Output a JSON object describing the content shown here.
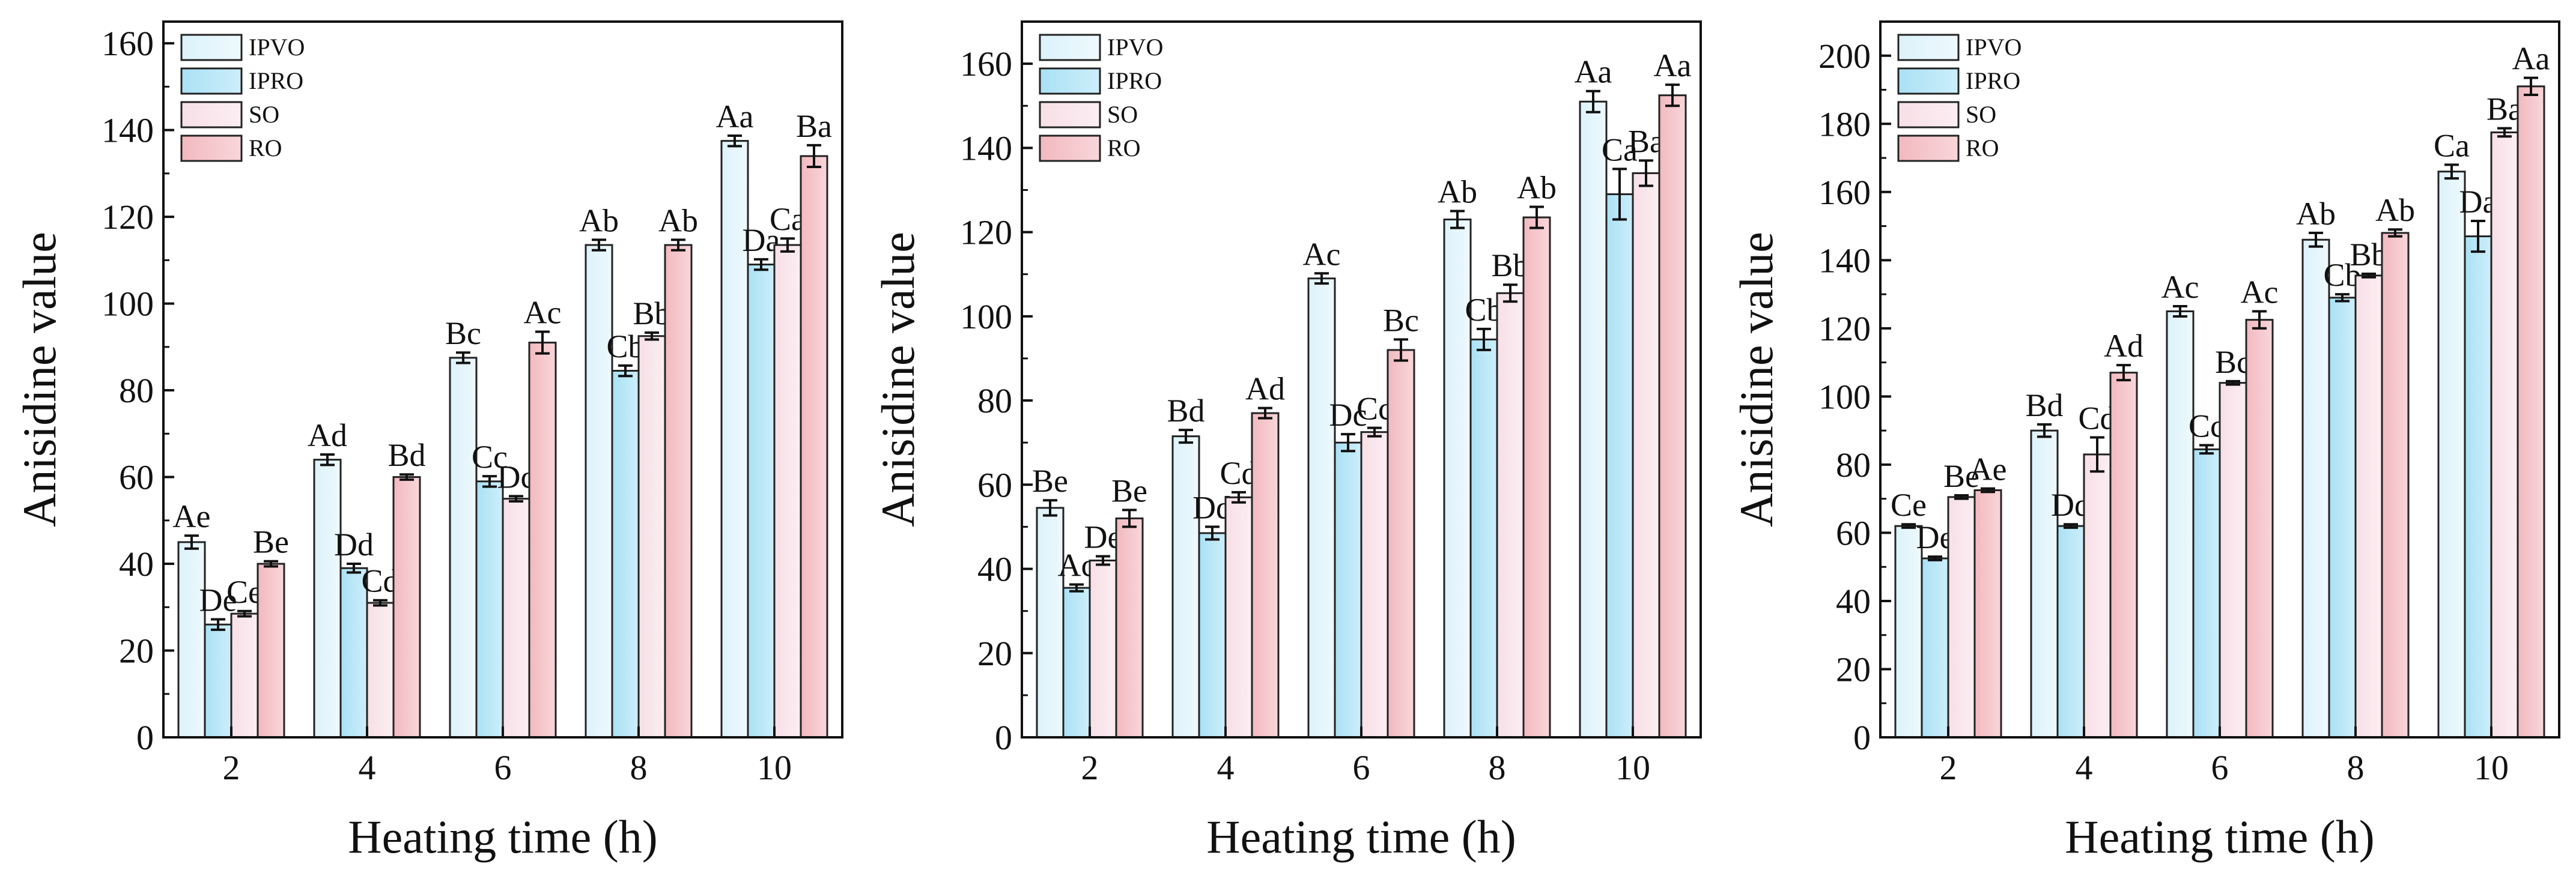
{
  "legend": {
    "entries": [
      {
        "name": "IPVO",
        "color": "#dcf2fb",
        "gradient_to": "#eef9fd"
      },
      {
        "name": "IPRO",
        "color": "#a9e1f5",
        "gradient_to": "#cdeefa"
      },
      {
        "name": "SO",
        "color": "#f7dfe6",
        "gradient_to": "#fbeef2"
      },
      {
        "name": "RO",
        "color": "#f2b9bf",
        "gradient_to": "#f8d6da"
      }
    ]
  },
  "chart_data": [
    {
      "type": "bar",
      "title": "",
      "xlabel": "Heating time (h)",
      "ylabel": "Anisidine value",
      "categories": [
        "2",
        "4",
        "6",
        "8",
        "10"
      ],
      "ylim": [
        0,
        165
      ],
      "yticks": [
        "0",
        "20",
        "40",
        "60",
        "80",
        "100",
        "120",
        "140",
        "160"
      ],
      "legend_position": "top-left",
      "series": [
        {
          "name": "IPVO",
          "values": [
            45,
            64,
            87.5,
            113.5,
            137.5
          ],
          "errors": [
            1.5,
            1.2,
            1.2,
            1.2,
            1.2
          ],
          "labels": [
            "Ae",
            "Ad",
            "Bc",
            "Ab",
            "Aa"
          ]
        },
        {
          "name": "IPRO",
          "values": [
            26,
            39,
            59,
            84.5,
            109
          ],
          "errors": [
            1.2,
            1.0,
            1.2,
            1.2,
            1.2
          ],
          "labels": [
            "De",
            "Dd",
            "Cc",
            "Cb",
            "Da"
          ]
        },
        {
          "name": "SO",
          "values": [
            28.5,
            31,
            55,
            92.5,
            113.5
          ],
          "errors": [
            0.6,
            0.6,
            0.6,
            0.8,
            1.5
          ],
          "labels": [
            "Ce",
            "Cd",
            "Dc",
            "Bb",
            "Ca"
          ]
        },
        {
          "name": "RO",
          "values": [
            40,
            60,
            91,
            113.5,
            134
          ],
          "errors": [
            0.6,
            0.6,
            2.5,
            1.2,
            2.5
          ],
          "labels": [
            "Be",
            "Bd",
            "Ac",
            "Ab",
            "Ba"
          ]
        }
      ]
    },
    {
      "type": "bar",
      "title": "",
      "xlabel": "Heating time (h)",
      "ylabel": "Anisidine value",
      "categories": [
        "2",
        "4",
        "6",
        "8",
        "10"
      ],
      "ylim": [
        0,
        170
      ],
      "yticks": [
        "0",
        "20",
        "40",
        "60",
        "80",
        "100",
        "120",
        "140",
        "160"
      ],
      "legend_position": "top-left",
      "series": [
        {
          "name": "IPVO",
          "values": [
            54.5,
            71.5,
            109,
            123,
            151
          ],
          "errors": [
            1.8,
            1.5,
            1.2,
            2.0,
            2.5
          ],
          "labels": [
            "Be",
            "Bd",
            "Ac",
            "Ab",
            "Aa"
          ]
        },
        {
          "name": "IPRO",
          "values": [
            35.5,
            48.5,
            70,
            94.5,
            129
          ],
          "errors": [
            0.8,
            1.5,
            2.0,
            2.5,
            6.0
          ],
          "labels": [
            "Ac",
            "Dd",
            "Dc",
            "Cb",
            "Ca"
          ]
        },
        {
          "name": "SO",
          "values": [
            42,
            57,
            72.5,
            105.5,
            134
          ],
          "errors": [
            1.0,
            1.2,
            1.0,
            2.0,
            3.0
          ],
          "labels": [
            "De",
            "Cd",
            "Cc",
            "Bb",
            "Ba"
          ]
        },
        {
          "name": "RO",
          "values": [
            52,
            77,
            92,
            123.5,
            152.5
          ],
          "errors": [
            2.0,
            1.2,
            2.5,
            2.5,
            2.5
          ],
          "labels": [
            "Be",
            "Ad",
            "Bc",
            "Ab",
            "Aa"
          ]
        }
      ]
    },
    {
      "type": "bar",
      "title": "",
      "xlabel": "Heating time (h)",
      "ylabel": "Anisidine value",
      "categories": [
        "2",
        "4",
        "6",
        "8",
        "10"
      ],
      "ylim": [
        0,
        210
      ],
      "yticks": [
        "0",
        "20",
        "40",
        "60",
        "80",
        "100",
        "120",
        "140",
        "160",
        "180",
        "200"
      ],
      "legend_position": "top-left",
      "series": [
        {
          "name": "IPVO",
          "values": [
            62,
            90,
            125,
            146,
            166
          ],
          "errors": [
            0.5,
            1.8,
            1.5,
            2.0,
            2.0
          ],
          "labels": [
            "Ce",
            "Bd",
            "Ac",
            "Ab",
            "Ca"
          ]
        },
        {
          "name": "IPRO",
          "values": [
            52.5,
            62,
            84.5,
            129,
            147
          ],
          "errors": [
            0.5,
            0.5,
            1.2,
            1.0,
            4.5
          ],
          "labels": [
            "De",
            "Dd",
            "Cc",
            "Cb",
            "Da"
          ]
        },
        {
          "name": "SO",
          "values": [
            70.5,
            83,
            104,
            135.5,
            177.5
          ],
          "errors": [
            0.5,
            5.0,
            0.5,
            0.5,
            1.2
          ],
          "labels": [
            "Be",
            "Cd",
            "Bc",
            "Bb",
            "Ba"
          ]
        },
        {
          "name": "RO",
          "values": [
            72.5,
            107,
            122.5,
            148,
            191
          ],
          "errors": [
            0.5,
            2.2,
            2.5,
            1.0,
            2.5
          ],
          "labels": [
            "Ae",
            "Ad",
            "Ac",
            "Ab",
            "Aa"
          ]
        }
      ]
    }
  ]
}
